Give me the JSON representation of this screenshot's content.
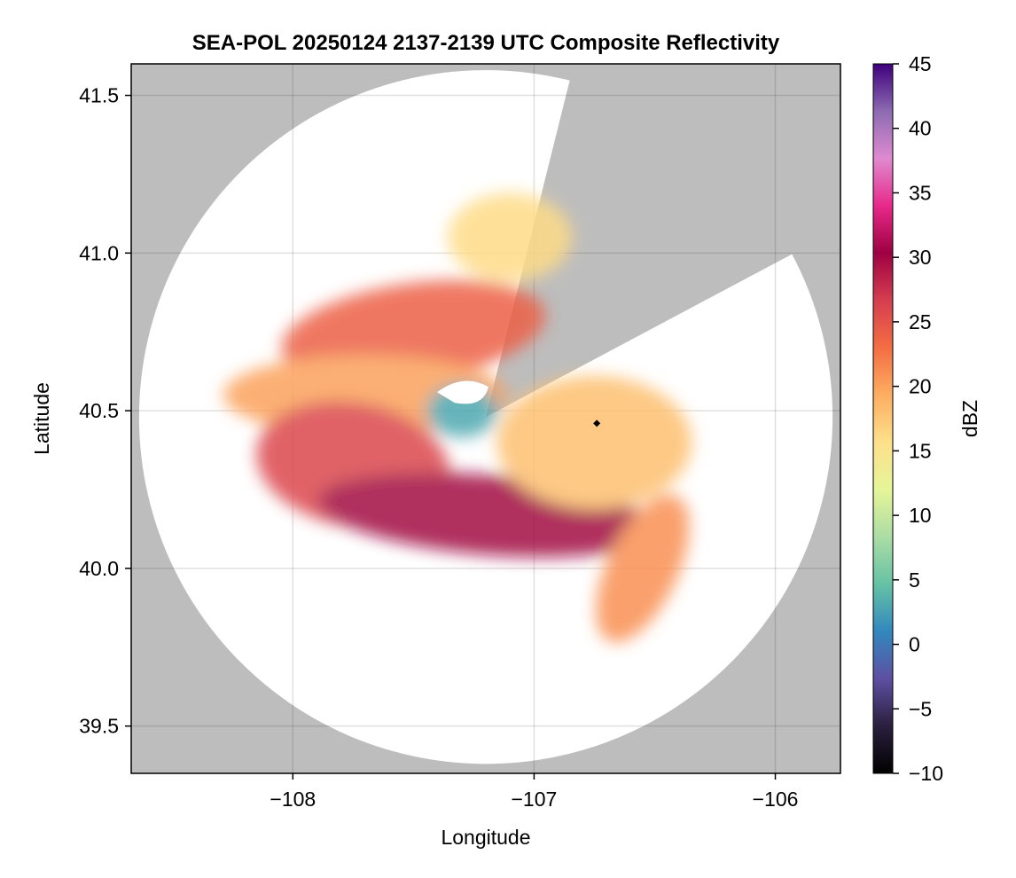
{
  "chart_data": {
    "type": "heatmap",
    "title": "SEA-POL 20250124 2137-2139 UTC Composite Reflectivity",
    "xlabel": "Longitude",
    "ylabel": "Latitude",
    "xlim": [
      -108.67,
      -105.73
    ],
    "ylim": [
      39.35,
      41.6
    ],
    "xticks": [
      -108,
      -107,
      -106
    ],
    "xtick_labels": [
      "−108",
      "−107",
      "−106"
    ],
    "yticks": [
      39.5,
      40.0,
      40.5,
      41.0,
      41.5
    ],
    "ytick_labels": [
      "39.5",
      "40.0",
      "40.5",
      "41.0",
      "41.5"
    ],
    "grid": true,
    "background_color": "#bdbdbd",
    "radar_site": {
      "lon": -107.2,
      "lat": 40.48
    },
    "radar_range_deg_lat": 1.1,
    "blocked_sector_azimuth_deg": [
      14,
      62
    ],
    "marker": {
      "lon": -106.74,
      "lat": 40.46
    },
    "colorbar": {
      "label": "dBZ",
      "range": [
        -10,
        45
      ],
      "ticks": [
        -10,
        -5,
        0,
        5,
        10,
        15,
        20,
        25,
        30,
        35,
        40,
        45
      ],
      "tick_labels": [
        "−10",
        "−5",
        "0",
        "5",
        "10",
        "15",
        "20",
        "25",
        "30",
        "35",
        "40",
        "45"
      ],
      "colormap": [
        "#000000",
        "#2a1f3d",
        "#5e4fa2",
        "#3288bd",
        "#66c2a5",
        "#abdda4",
        "#e6f598",
        "#fee08b",
        "#fdae61",
        "#f46d43",
        "#d53e4f",
        "#9e0142",
        "#e7298a",
        "#df8ad0",
        "#8c6bb1",
        "#3f007d"
      ]
    },
    "echo_regions": [
      {
        "name": "northern band",
        "lon": -107.5,
        "lat": 40.75,
        "dbz": 24
      },
      {
        "name": "west middle band",
        "lon": -107.7,
        "lat": 40.55,
        "dbz": 20
      },
      {
        "name": "southwest core",
        "lon": -107.75,
        "lat": 40.33,
        "dbz": 26
      },
      {
        "name": "southern band",
        "lon": -107.2,
        "lat": 40.17,
        "dbz": 30
      },
      {
        "name": "eastern area",
        "lon": -106.75,
        "lat": 40.4,
        "dbz": 18
      },
      {
        "name": "near-radar weak echo",
        "lon": -107.3,
        "lat": 40.5,
        "dbz": 3
      },
      {
        "name": "southeast tail",
        "lon": -106.55,
        "lat": 40.0,
        "dbz": 21
      },
      {
        "name": "northern scatter",
        "lon": -107.1,
        "lat": 41.05,
        "dbz": 16
      }
    ]
  }
}
